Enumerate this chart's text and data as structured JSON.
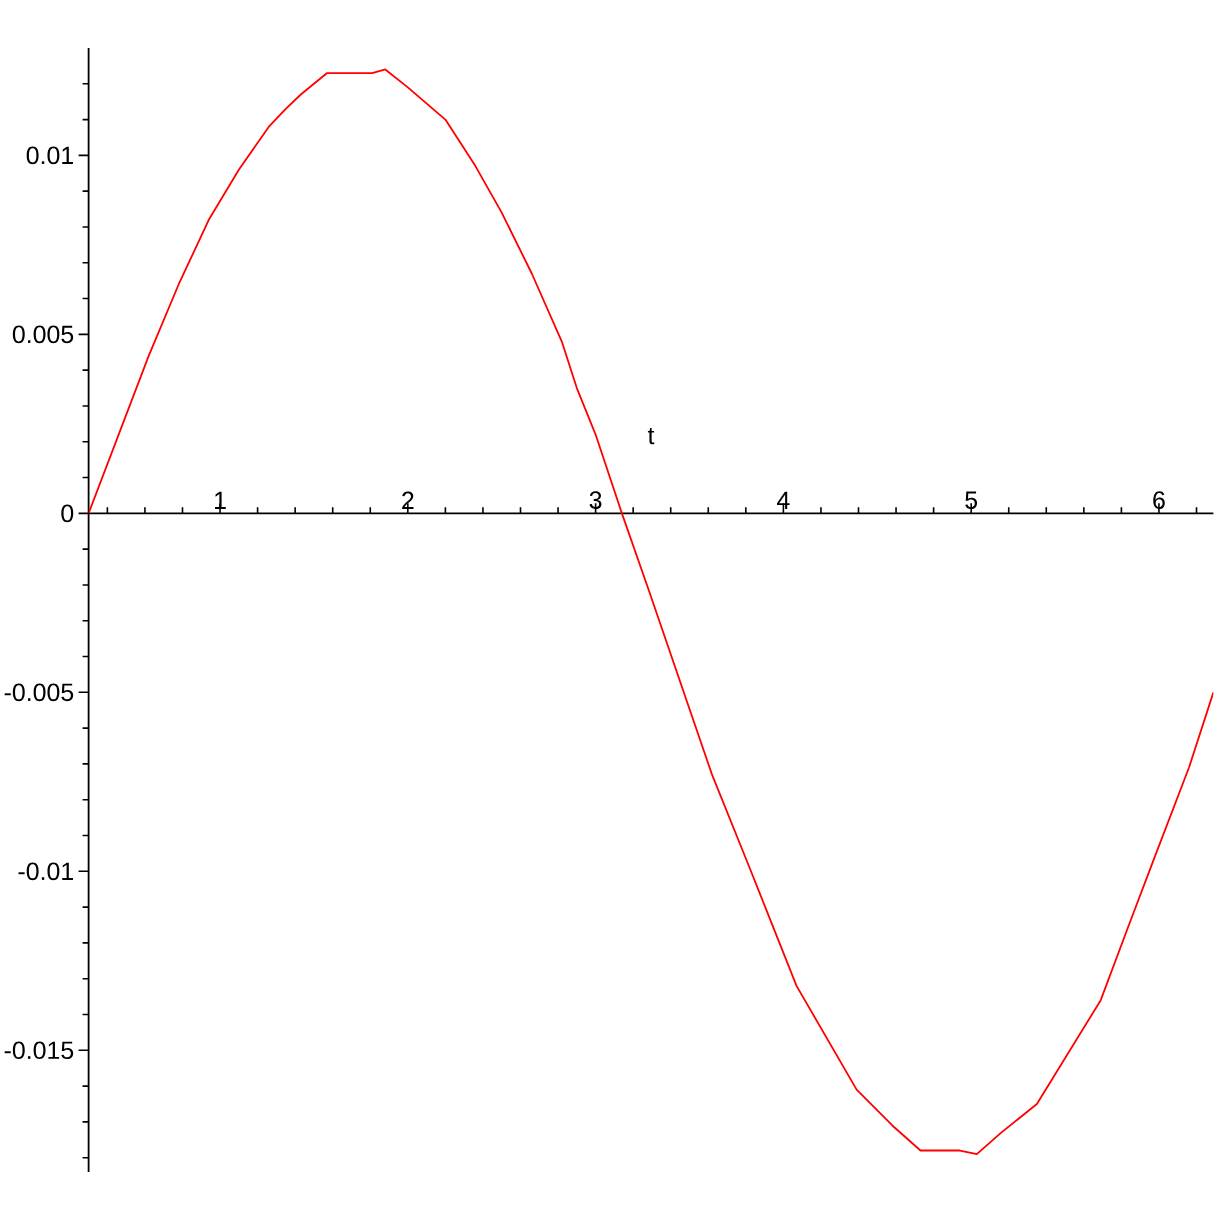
{
  "chart_data": {
    "type": "line",
    "xlabel": "t",
    "x": [
      0.3,
      0.46,
      0.62,
      0.78,
      0.94,
      1.1,
      1.26,
      1.35,
      1.43,
      1.57,
      1.81,
      1.88,
      2.0,
      2.2,
      2.36,
      2.5,
      2.66,
      2.82,
      2.9,
      3.0,
      3.14,
      3.28,
      3.45,
      3.62,
      3.82,
      4.07,
      4.39,
      4.58,
      4.73,
      4.94,
      5.03,
      5.16,
      5.35,
      5.69,
      5.84,
      5.97,
      6.16,
      6.29
    ],
    "values": [
      0,
      0.0022,
      0.0044,
      0.0064,
      0.0082,
      0.0096,
      0.0108,
      0.0113,
      0.0117,
      0.0123,
      0.0123,
      0.0124,
      0.0119,
      0.011,
      0.0097,
      0.0084,
      0.0067,
      0.0048,
      0.0035,
      0.0022,
      0,
      -0.0021,
      -0.0047,
      -0.0073,
      -0.0099,
      -0.0132,
      -0.0161,
      -0.0171,
      -0.0178,
      -0.0178,
      -0.0179,
      -0.0173,
      -0.0165,
      -0.0136,
      -0.0115,
      -0.0097,
      -0.0071,
      -0.005
    ],
    "color": "#ff0000",
    "line_style": "solid",
    "marker": "none",
    "xlim": [
      0.3,
      6.29
    ],
    "ylim": [
      -0.0184,
      0.013
    ],
    "xticks": [
      {
        "value": 0.4,
        "label": null
      },
      {
        "value": 0.6,
        "label": null
      },
      {
        "value": 0.8,
        "label": null
      },
      1,
      {
        "value": 1.2,
        "label": null
      },
      {
        "value": 1.4,
        "label": null
      },
      {
        "value": 1.6,
        "label": null
      },
      {
        "value": 1.8,
        "label": null
      },
      2,
      {
        "value": 2.2,
        "label": null
      },
      {
        "value": 2.4,
        "label": null
      },
      {
        "value": 2.6,
        "label": null
      },
      {
        "value": 2.8,
        "label": null
      },
      3,
      {
        "value": 3.2,
        "label": null
      },
      {
        "value": 3.4,
        "label": null
      },
      {
        "value": 3.6,
        "label": null
      },
      {
        "value": 3.8,
        "label": null
      },
      4,
      {
        "value": 4.2,
        "label": null
      },
      {
        "value": 4.4,
        "label": null
      },
      {
        "value": 4.6,
        "label": null
      },
      {
        "value": 4.8,
        "label": null
      },
      5,
      {
        "value": 5.2,
        "label": null
      },
      {
        "value": 5.4,
        "label": null
      },
      {
        "value": 5.6,
        "label": null
      },
      {
        "value": 5.8,
        "label": null
      },
      6,
      {
        "value": 6.2,
        "label": null
      }
    ],
    "yticks": [
      {
        "value": -0.018,
        "label": null
      },
      {
        "value": -0.017,
        "label": null
      },
      {
        "value": -0.016,
        "label": null
      },
      -0.015,
      {
        "value": -0.014,
        "label": null
      },
      {
        "value": -0.013,
        "label": null
      },
      {
        "value": -0.012,
        "label": null
      },
      {
        "value": -0.011,
        "label": null
      },
      -0.01,
      {
        "value": -0.009,
        "label": null
      },
      {
        "value": -0.008,
        "label": null
      },
      {
        "value": -0.007,
        "label": null
      },
      {
        "value": -0.006,
        "label": null
      },
      -0.005,
      {
        "value": -0.004,
        "label": null
      },
      {
        "value": -0.003,
        "label": null
      },
      {
        "value": -0.002,
        "label": null
      },
      {
        "value": -0.001,
        "label": null
      },
      0,
      {
        "value": 0.001,
        "label": null
      },
      {
        "value": 0.002,
        "label": null
      },
      {
        "value": 0.003,
        "label": null
      },
      {
        "value": 0.004,
        "label": null
      },
      0.005,
      {
        "value": 0.006,
        "label": null
      },
      {
        "value": 0.007,
        "label": null
      },
      {
        "value": 0.008,
        "label": null
      },
      {
        "value": 0.009,
        "label": null
      },
      0.01,
      {
        "value": 0.011,
        "label": null
      },
      {
        "value": 0.012,
        "label": null
      }
    ]
  }
}
